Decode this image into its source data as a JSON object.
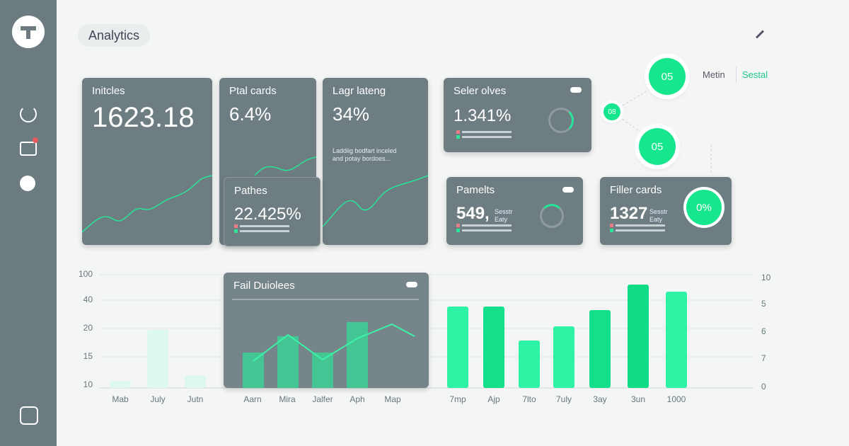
{
  "header": {
    "title": "Analytics"
  },
  "tabs": [
    "Metin",
    "Sestal"
  ],
  "cards": [
    {
      "title": "Initcles",
      "value": "1623.18"
    },
    {
      "title": "Ptal cards",
      "value": "6.4%"
    },
    {
      "title": "Lagr lateng",
      "value": "34%",
      "note": [
        "Laddiig bodfart inceled",
        "and potay bordoes..."
      ]
    },
    {
      "title": "Pathes",
      "value": "22.425%"
    },
    {
      "title": "Seler olves",
      "value": "1.341%"
    },
    {
      "title": "Pamelts",
      "value": "549,",
      "note": [
        "Sesstr",
        "Eaty"
      ]
    },
    {
      "title": "Filler cards",
      "value": "1327",
      "note": [
        "Sesstr",
        "Eaty"
      ],
      "badge": "0%"
    }
  ],
  "badges": [
    "05",
    "08",
    "05"
  ],
  "chart": {
    "title": "Fail Duiolees",
    "left_axis": [
      "100",
      "40",
      "20",
      "15",
      "10"
    ],
    "right_axis": [
      "10",
      "5",
      "6",
      "7",
      "0"
    ],
    "x_labels": [
      "Mab",
      "July",
      "Jutn",
      "Aarn",
      "Mira",
      "Jalfer",
      "Aph",
      "Map",
      "7mp",
      "Ajp",
      "7lto",
      "7uly",
      "3ay",
      "3un",
      "1000"
    ]
  }
}
